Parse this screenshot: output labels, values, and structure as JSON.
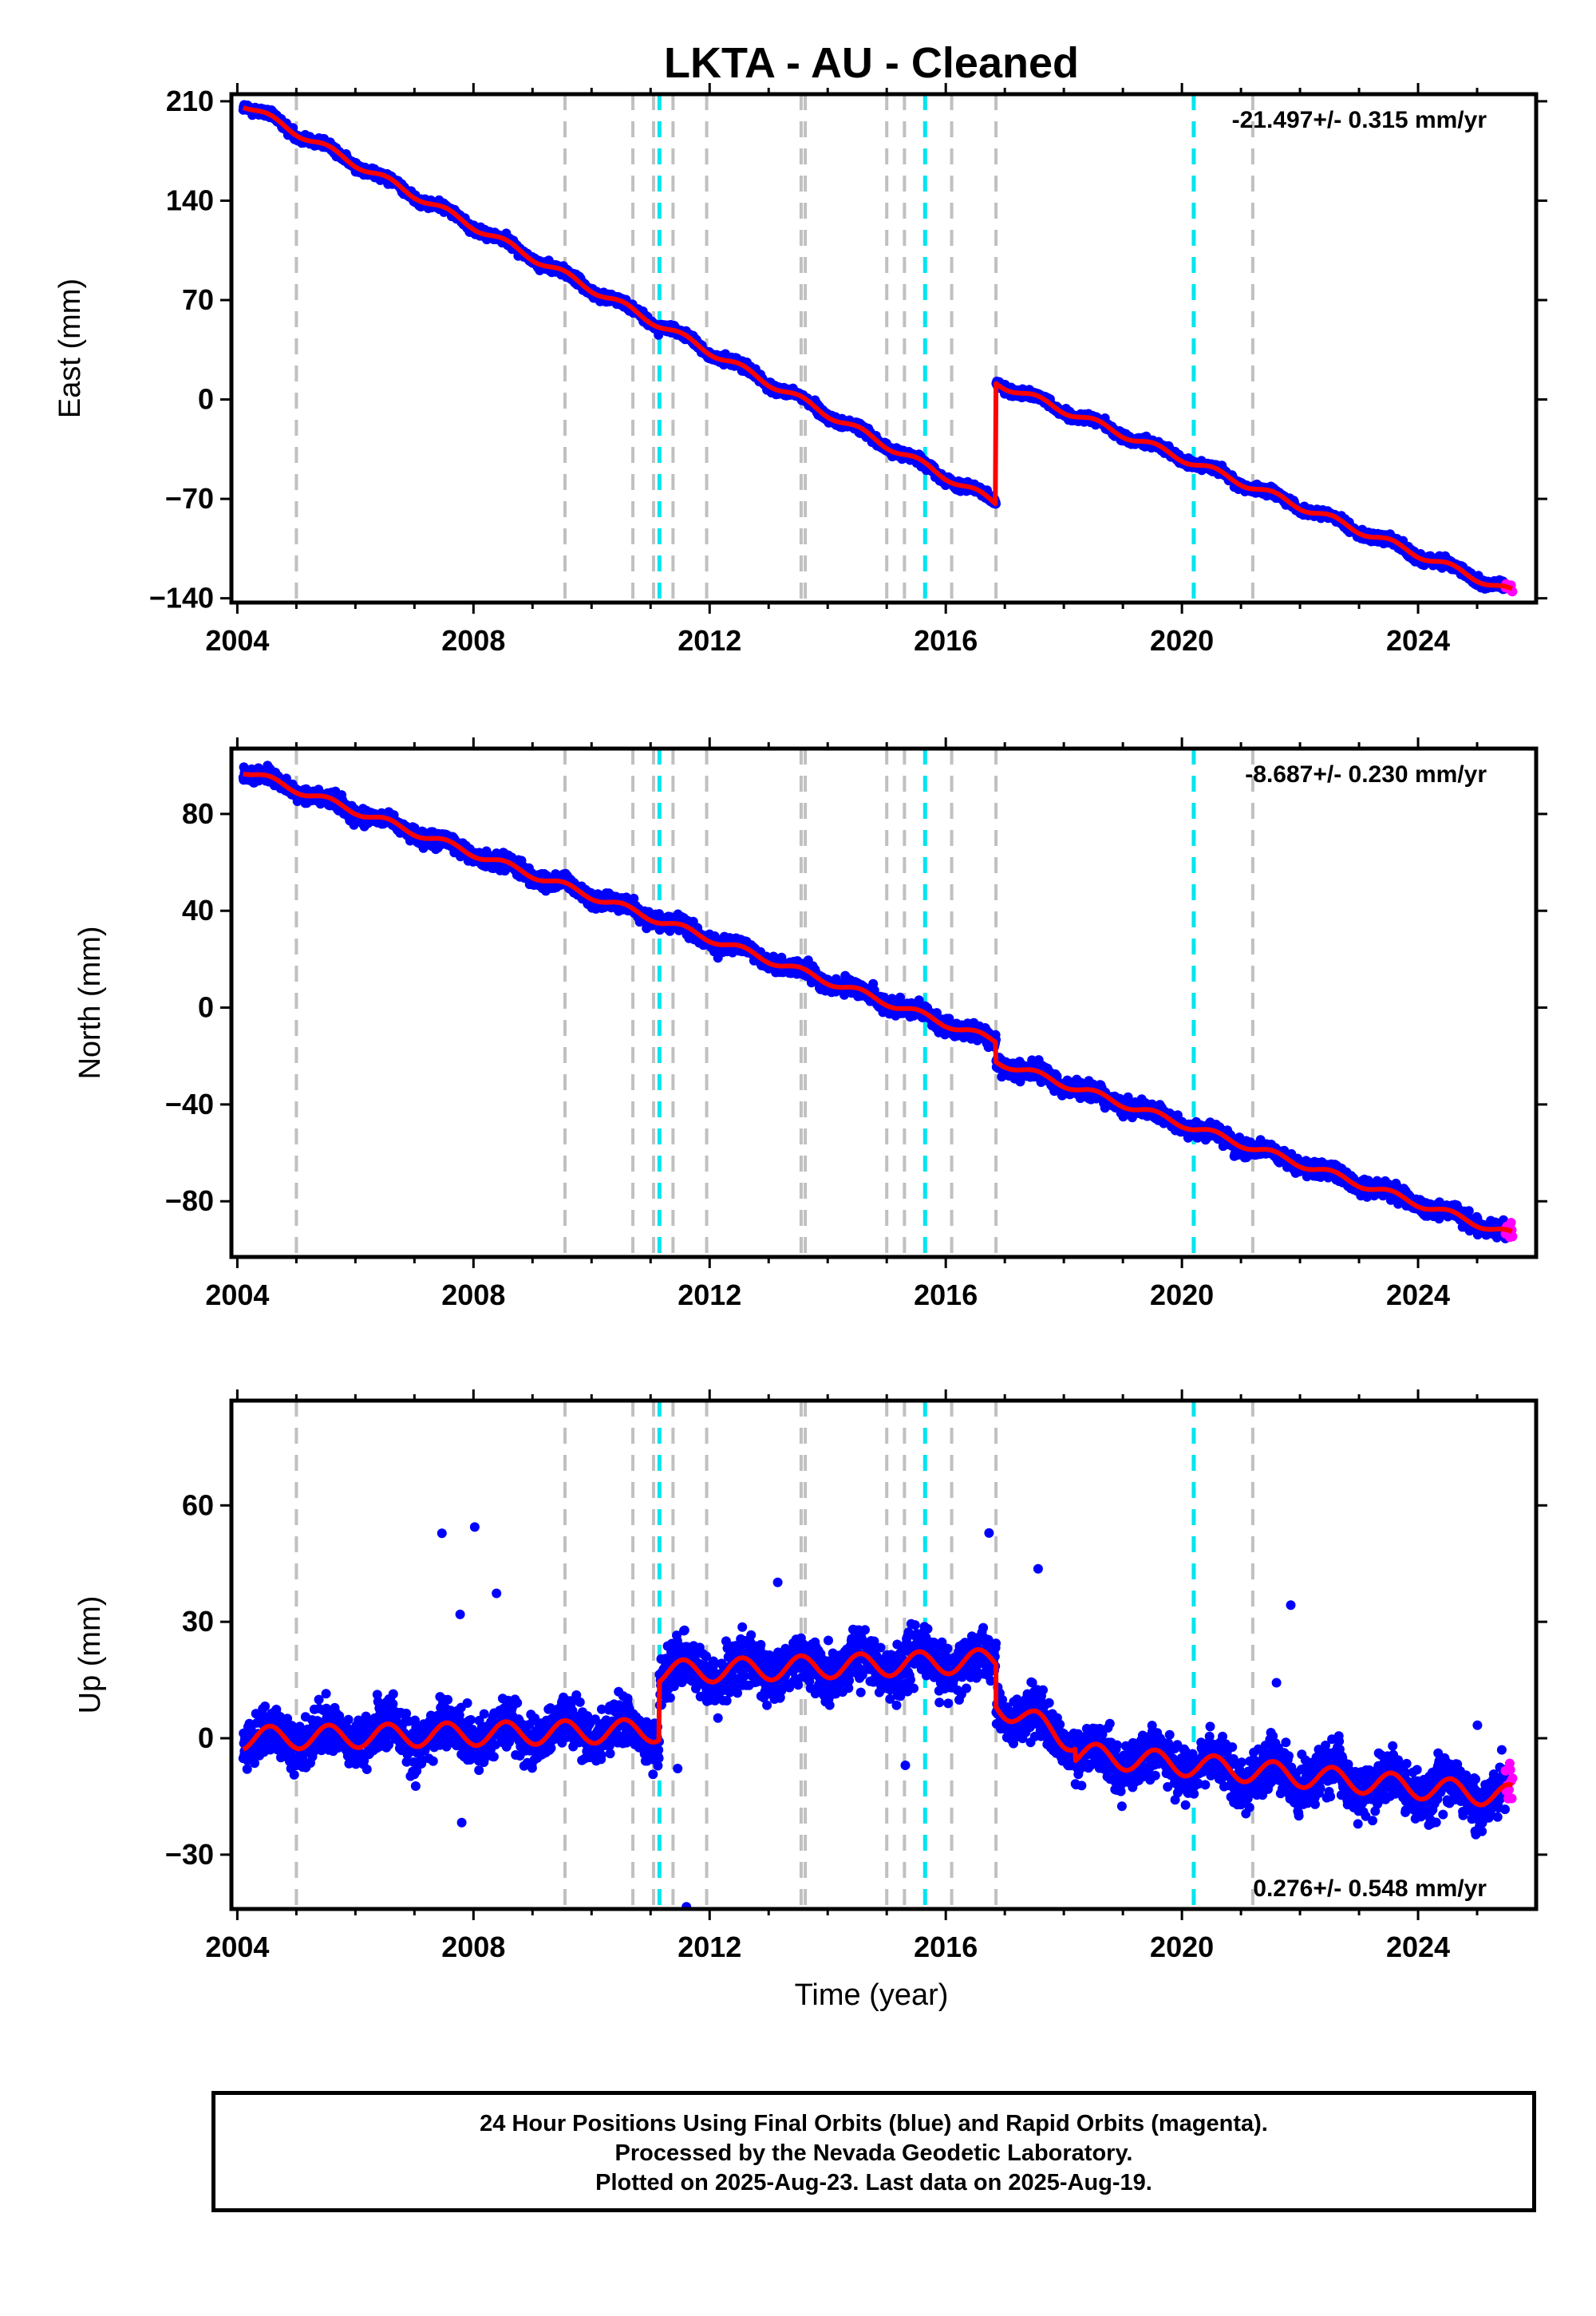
{
  "chart_data": {
    "title": "LKTA  - AU - Cleaned",
    "type": "scatter",
    "xlabel": "Time (year)",
    "x_ticks": [
      2004,
      2008,
      2012,
      2016,
      2020,
      2024
    ],
    "xlim": [
      2003.9,
      2026.0
    ],
    "colors": {
      "final_orbits": "#0000ff",
      "rapid_orbits": "#ff00ff",
      "model": "#ff0000",
      "equipment_change": "#c0c0c0",
      "earthquake": "#00e5ee"
    },
    "events_gray": [
      2005.0,
      2009.55,
      2010.7,
      2011.05,
      2011.38,
      2011.95,
      2013.55,
      2013.62,
      2015.0,
      2015.3,
      2016.1,
      2016.85,
      2021.2
    ],
    "events_cyan": [
      2011.15,
      2015.65,
      2020.2
    ],
    "offset_epoch": 2016.85,
    "panels": [
      {
        "name": "east",
        "ylabel": "East (mm)",
        "ylim": [
          -143,
          215
        ],
        "y_ticks": [
          210,
          140,
          70,
          0,
          -70,
          -140
        ],
        "rate_label": "-21.497+/- 0.315 mm/yr",
        "rate_position": "top-right",
        "segments": [
          {
            "x": [
              2004.1,
              2016.85
            ],
            "y": [
              208,
              -73
            ]
          },
          {
            "x": [
              2016.85,
              2025.6
            ],
            "y": [
              12,
              -136
            ]
          }
        ],
        "scatter": 3,
        "seasonal": 2.5
      },
      {
        "name": "north",
        "ylabel": "North (mm)",
        "ylim": [
          -103,
          107
        ],
        "y_ticks": [
          80,
          40,
          0,
          -40,
          -80
        ],
        "rate_label": "-8.687+/- 0.230 mm/yr",
        "rate_position": "top-right",
        "segments": [
          {
            "x": [
              2004.1,
              2016.85
            ],
            "y": [
              98,
              -14
            ]
          },
          {
            "x": [
              2016.85,
              2025.6
            ],
            "y": [
              -22,
              -94
            ]
          }
        ],
        "scatter": 3,
        "seasonal": 1.5
      },
      {
        "name": "up",
        "ylabel": "Up (mm)",
        "ylim": [
          -44,
          87
        ],
        "y_ticks": [
          60,
          30,
          0,
          -30
        ],
        "rate_label": "0.276+/- 0.548 mm/yr",
        "rate_position": "bottom-right",
        "segments": [
          {
            "x": [
              2004.1,
              2011.15
            ],
            "y": [
              0,
              2
            ]
          },
          {
            "x": [
              2011.15,
              2016.85
            ],
            "y": [
              17,
              20
            ]
          },
          {
            "x": [
              2016.85,
              2018.2
            ],
            "y": [
              9,
              -1
            ]
          },
          {
            "x": [
              2018.2,
              2025.6
            ],
            "y": [
              -4,
              -15
            ]
          }
        ],
        "scatter": 6,
        "seasonal": 3
      }
    ]
  },
  "footer": {
    "line1": "24 Hour Positions Using Final Orbits (blue) and Rapid Orbits (magenta).",
    "line2": "Processed by the Nevada Geodetic Laboratory.",
    "line3": "Plotted on 2025-Aug-23. Last data on 2025-Aug-19."
  }
}
